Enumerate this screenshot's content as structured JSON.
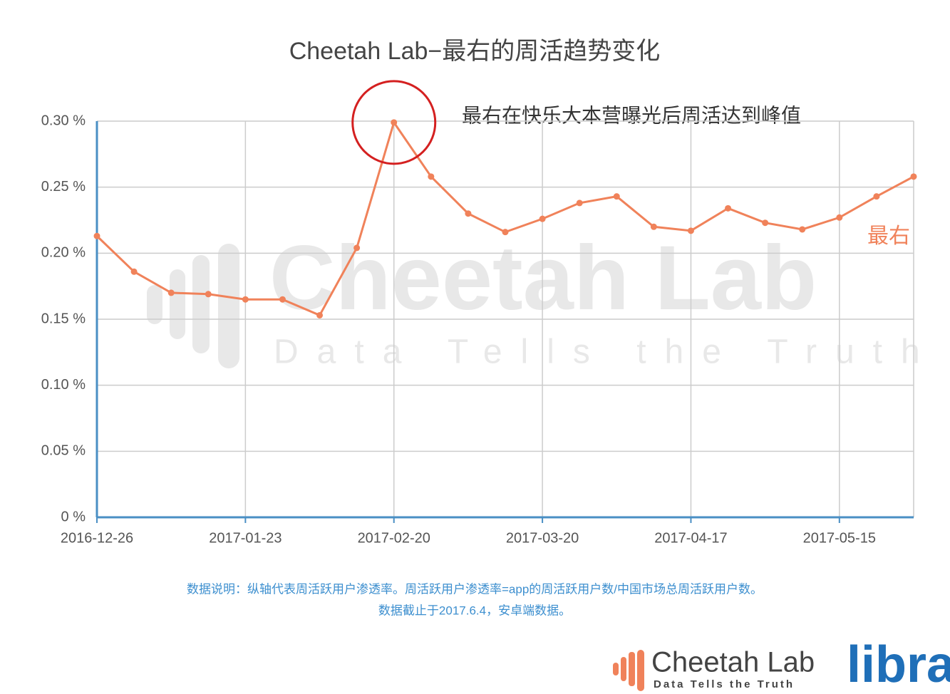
{
  "chart_data": {
    "type": "line",
    "title": "Cheetah Lab−最右的周活趋势变化",
    "annotation": "最右在快乐大本营曝光后周活达到峰值",
    "x": [
      "2016-12-26",
      "2017-01-02",
      "2017-01-09",
      "2017-01-16",
      "2017-01-23",
      "2017-01-30",
      "2017-02-06",
      "2017-02-13",
      "2017-02-20",
      "2017-02-27",
      "2017-03-06",
      "2017-03-13",
      "2017-03-20",
      "2017-03-27",
      "2017-04-03",
      "2017-04-10",
      "2017-04-17",
      "2017-04-24",
      "2017-05-01",
      "2017-05-08",
      "2017-05-15",
      "2017-05-22",
      "2017-05-29"
    ],
    "series": [
      {
        "name": "最右",
        "color": "#f0825a",
        "values": [
          0.213,
          0.186,
          0.17,
          0.169,
          0.165,
          0.165,
          0.153,
          0.204,
          0.299,
          0.258,
          0.23,
          0.216,
          0.226,
          0.238,
          0.243,
          0.22,
          0.217,
          0.234,
          0.223,
          0.218,
          0.227,
          0.243,
          0.258
        ]
      }
    ],
    "xlim": [
      "2016-12-26",
      "2017-05-29"
    ],
    "xticks": [
      "2016-12-26",
      "2017-01-23",
      "2017-02-20",
      "2017-03-20",
      "2017-04-17",
      "2017-05-15"
    ],
    "ylim": [
      0,
      0.3
    ],
    "yticks": [
      {
        "value": 0,
        "label": "0 %"
      },
      {
        "value": 0.05,
        "label": "0.05 %"
      },
      {
        "value": 0.1,
        "label": "0.10 %"
      },
      {
        "value": 0.15,
        "label": "0.15 %"
      },
      {
        "value": 0.2,
        "label": "0.20 %"
      },
      {
        "value": 0.25,
        "label": "0.25 %"
      },
      {
        "value": 0.3,
        "label": "0.30 %"
      }
    ],
    "grid": true,
    "notes": [
      "数据说明：纵轴代表周活跃用户渗透率。周活跃用户渗透率=app的周活跃用户数/中国市场总周活跃用户数。",
      "数据截止于2017.6.4，安卓端数据。"
    ]
  },
  "watermark": {
    "name": "Cheetah Lab",
    "tagline": "Data Tells the Truth"
  },
  "branding": {
    "name": "Cheetah Lab",
    "tagline": "Data Tells the Truth",
    "partner": "libra"
  }
}
